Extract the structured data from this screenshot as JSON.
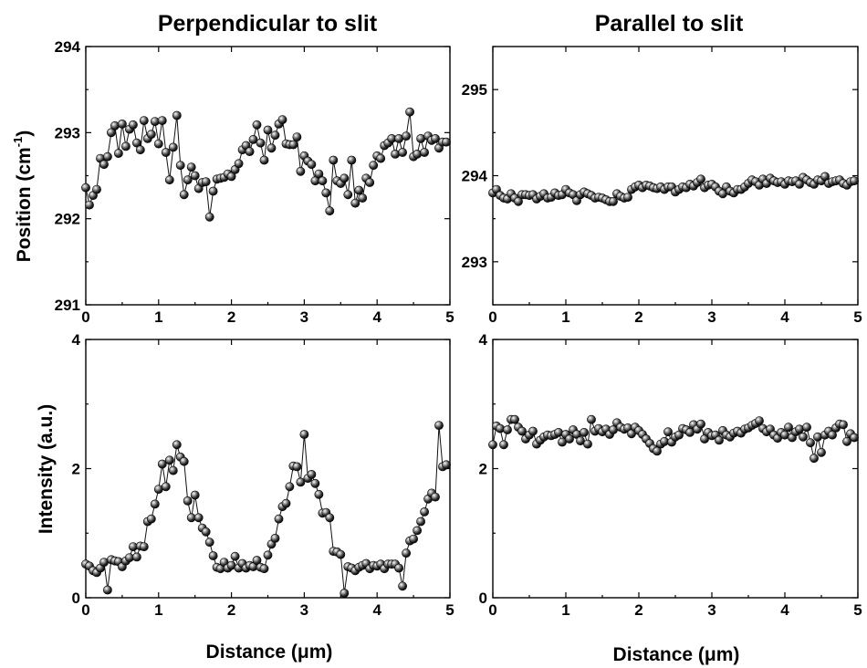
{
  "columns": [
    {
      "title": "Perpendicular to slit",
      "xlabel": "Distance (μm)"
    },
    {
      "title": "Parallel to slit",
      "xlabel": "Distance (μm)"
    }
  ],
  "chart_data": [
    {
      "type": "line",
      "id": "perp_pos",
      "ylabel_main": "Position (cm",
      "ylabel_sup": "-1",
      "ylabel_end": ")",
      "xlim": [
        0,
        5
      ],
      "ylim": [
        291,
        294
      ],
      "xticks": [
        "0",
        "1",
        "2",
        "3",
        "4",
        "5"
      ],
      "yticks": [
        "291",
        "292",
        "293",
        "294"
      ],
      "markers": true,
      "x_start": 0,
      "x_step": 0.05,
      "y": [
        292.36,
        292.16,
        292.27,
        292.34,
        292.7,
        292.63,
        292.72,
        293.0,
        293.08,
        292.76,
        293.1,
        292.84,
        293.04,
        293.09,
        292.88,
        292.8,
        293.14,
        292.93,
        292.98,
        293.13,
        292.87,
        293.14,
        292.77,
        292.45,
        292.83,
        293.2,
        292.62,
        292.28,
        292.45,
        292.6,
        292.5,
        292.35,
        292.42,
        292.43,
        292.02,
        292.32,
        292.46,
        292.47,
        292.48,
        292.52,
        292.49,
        292.57,
        292.64,
        292.8,
        292.85,
        292.78,
        292.92,
        293.09,
        292.88,
        292.68,
        293.03,
        292.82,
        292.97,
        293.1,
        293.15,
        292.87,
        292.86,
        292.86,
        292.95,
        292.55,
        292.73,
        292.67,
        292.63,
        292.44,
        292.52,
        292.44,
        292.3,
        292.09,
        292.68,
        292.44,
        292.41,
        292.47,
        292.28,
        292.68,
        292.18,
        292.33,
        292.24,
        292.47,
        292.42,
        292.62,
        292.73,
        292.7,
        292.85,
        292.88,
        292.93,
        292.75,
        292.93,
        292.77,
        292.96,
        293.24,
        292.72,
        292.75,
        292.93,
        292.77,
        292.96,
        292.91,
        292.93,
        292.82,
        292.89,
        292.89
      ]
    },
    {
      "type": "line",
      "id": "par_pos",
      "xlim": [
        0,
        5
      ],
      "ylim": [
        292.5,
        295.5
      ],
      "xticks": [
        "0",
        "1",
        "2",
        "3",
        "4",
        "5"
      ],
      "yticks": [
        "293",
        "294",
        "295"
      ],
      "markers": true,
      "x_start": 0,
      "x_step": 0.05,
      "y": [
        293.8,
        293.84,
        293.77,
        293.74,
        293.73,
        293.79,
        293.74,
        293.7,
        293.78,
        293.78,
        293.77,
        293.78,
        293.73,
        293.76,
        293.79,
        293.74,
        293.75,
        293.8,
        293.77,
        293.78,
        293.84,
        293.8,
        293.78,
        293.71,
        293.78,
        293.81,
        293.79,
        293.77,
        293.74,
        293.75,
        293.74,
        293.72,
        293.7,
        293.7,
        293.79,
        293.76,
        293.74,
        293.75,
        293.84,
        293.87,
        293.89,
        293.86,
        293.89,
        293.88,
        293.86,
        293.85,
        293.87,
        293.84,
        293.87,
        293.87,
        293.81,
        293.84,
        293.87,
        293.86,
        293.9,
        293.88,
        293.92,
        293.96,
        293.86,
        293.89,
        293.9,
        293.87,
        293.82,
        293.79,
        293.87,
        293.82,
        293.8,
        293.84,
        293.84,
        293.87,
        293.91,
        293.95,
        293.93,
        293.89,
        293.96,
        293.91,
        293.97,
        293.94,
        293.92,
        293.93,
        293.9,
        293.94,
        293.93,
        293.94,
        293.9,
        293.98,
        293.95,
        293.92,
        293.9,
        293.95,
        293.94,
        293.99,
        293.91,
        293.93,
        293.94,
        293.95,
        293.91,
        293.89,
        293.93,
        293.94
      ]
    },
    {
      "type": "line",
      "id": "perp_int",
      "ylabel_main": "Intensity (a.u.)",
      "xlim": [
        0,
        5
      ],
      "ylim": [
        0,
        4
      ],
      "xticks": [
        "0",
        "1",
        "2",
        "3",
        "4",
        "5"
      ],
      "yticks": [
        "0",
        "2",
        "4"
      ],
      "markers": true,
      "x_start": 0,
      "x_step": 0.05,
      "y": [
        0.52,
        0.49,
        0.42,
        0.39,
        0.46,
        0.55,
        0.12,
        0.59,
        0.57,
        0.56,
        0.48,
        0.57,
        0.62,
        0.79,
        0.63,
        0.8,
        0.79,
        1.18,
        1.22,
        1.45,
        1.68,
        2.07,
        1.72,
        2.13,
        1.97,
        2.37,
        2.18,
        2.11,
        1.5,
        1.24,
        1.59,
        1.24,
        1.08,
        1.02,
        0.86,
        0.65,
        0.47,
        0.45,
        0.55,
        0.46,
        0.5,
        0.64,
        0.46,
        0.53,
        0.46,
        0.5,
        0.48,
        0.58,
        0.47,
        0.45,
        0.66,
        0.83,
        0.92,
        1.22,
        1.41,
        1.46,
        1.72,
        2.04,
        2.03,
        1.79,
        2.53,
        1.85,
        1.91,
        1.77,
        1.6,
        1.31,
        1.32,
        1.24,
        0.72,
        0.71,
        0.67,
        0.07,
        0.48,
        0.46,
        0.42,
        0.47,
        0.5,
        0.53,
        0.45,
        0.5,
        0.49,
        0.52,
        0.45,
        0.52,
        0.52,
        0.52,
        0.46,
        0.18,
        0.69,
        0.88,
        0.91,
        1.04,
        1.18,
        1.33,
        1.53,
        1.62,
        1.56,
        2.67,
        2.03,
        2.06
      ]
    },
    {
      "type": "line",
      "id": "par_int",
      "xlim": [
        0,
        5
      ],
      "ylim": [
        0,
        4
      ],
      "xticks": [
        "0",
        "1",
        "2",
        "3",
        "4",
        "5"
      ],
      "yticks": [
        "0",
        "2",
        "4"
      ],
      "markers": true,
      "x_start": 0,
      "x_step": 0.05,
      "y": [
        2.37,
        2.66,
        2.62,
        2.37,
        2.6,
        2.76,
        2.76,
        2.64,
        2.58,
        2.46,
        2.52,
        2.58,
        2.38,
        2.44,
        2.49,
        2.52,
        2.51,
        2.53,
        2.56,
        2.41,
        2.53,
        2.46,
        2.6,
        2.53,
        2.43,
        2.56,
        2.38,
        2.76,
        2.58,
        2.62,
        2.57,
        2.61,
        2.53,
        2.6,
        2.71,
        2.64,
        2.61,
        2.63,
        2.54,
        2.64,
        2.59,
        2.53,
        2.46,
        2.39,
        2.31,
        2.27,
        2.38,
        2.42,
        2.57,
        2.41,
        2.49,
        2.52,
        2.62,
        2.6,
        2.56,
        2.68,
        2.61,
        2.69,
        2.46,
        2.56,
        2.51,
        2.52,
        2.44,
        2.59,
        2.52,
        2.49,
        2.55,
        2.58,
        2.55,
        2.61,
        2.63,
        2.67,
        2.7,
        2.74,
        2.62,
        2.57,
        2.61,
        2.52,
        2.47,
        2.56,
        2.52,
        2.64,
        2.48,
        2.57,
        2.61,
        2.49,
        2.64,
        2.4,
        2.16,
        2.49,
        2.25,
        2.52,
        2.58,
        2.52,
        2.63,
        2.69,
        2.68,
        2.42,
        2.54,
        2.48
      ]
    }
  ]
}
